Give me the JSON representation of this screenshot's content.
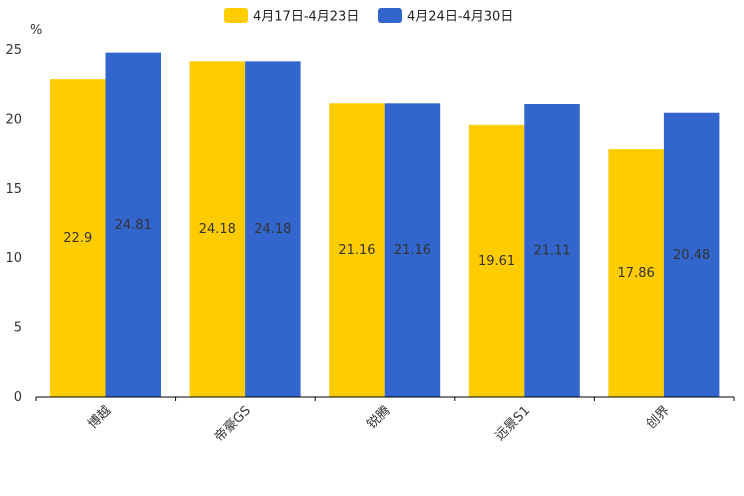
{
  "chart_data": {
    "type": "bar",
    "title": "",
    "xlabel": "",
    "ylabel": "%",
    "ylim": [
      0,
      25
    ],
    "yticks": [
      0,
      5,
      10,
      15,
      20,
      25
    ],
    "categories": [
      "博越",
      "帝豪GS",
      "锐腾",
      "远景S1",
      "创界"
    ],
    "series": [
      {
        "name": "4月17日-4月23日",
        "color": "#ffcc00",
        "values": [
          22.9,
          24.18,
          21.16,
          19.61,
          17.86
        ]
      },
      {
        "name": "4月24日-4月30日",
        "color": "#3366cc",
        "values": [
          24.81,
          24.18,
          21.16,
          21.11,
          20.48
        ]
      }
    ],
    "legend_position": "top-center",
    "grid": false
  }
}
